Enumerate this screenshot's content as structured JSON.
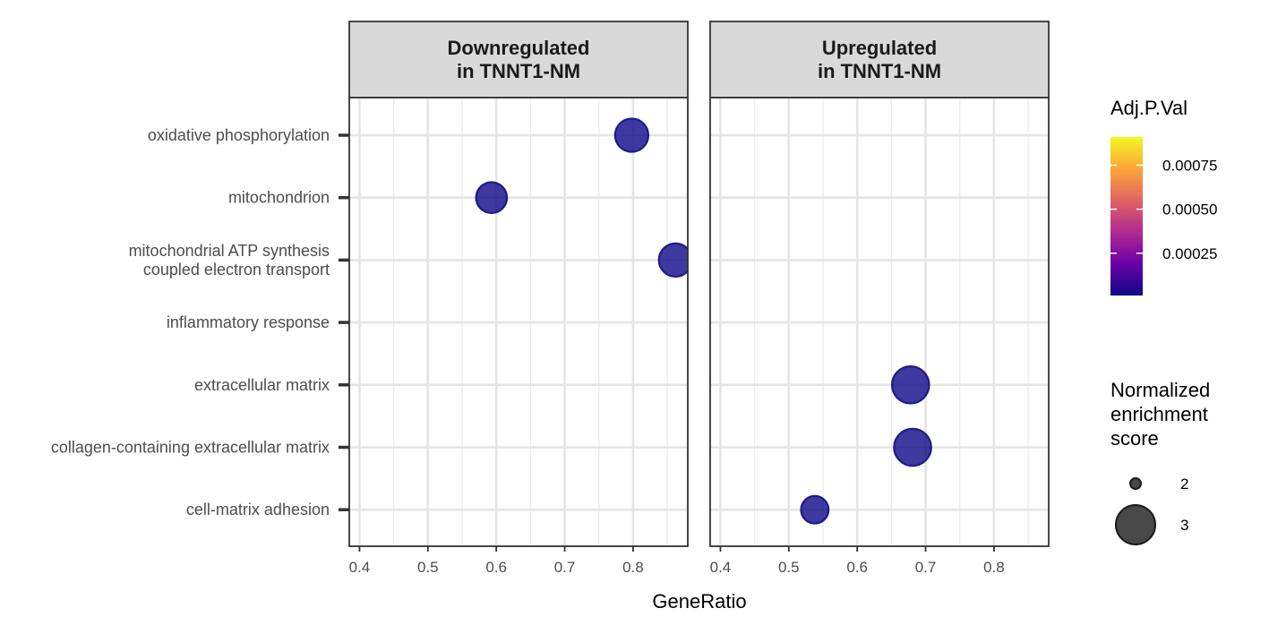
{
  "chart_data": {
    "type": "scatter",
    "xlabel": "GeneRatio",
    "xlim": [
      0.385,
      0.88
    ],
    "x_ticks": [
      "0.4",
      "0.5",
      "0.6",
      "0.7",
      "0.8"
    ],
    "x_tick_values": [
      0.4,
      0.5,
      0.6,
      0.7,
      0.8
    ],
    "categories": [
      "oxidative phosphorylation",
      "mitochondrion",
      "mitochondrial ATP synthesis\ncoupled electron transport",
      "inflammatory response",
      "extracellular matrix",
      "collagen-containing extracellular matrix",
      "cell-matrix adhesion"
    ],
    "panels": [
      {
        "title": "Downregulated\nin TNNT1-NM",
        "points": [
          {
            "category": "oxidative phosphorylation",
            "x": 0.798,
            "size": 2.85,
            "adj_p_val": 1e-05
          },
          {
            "category": "mitochondrion",
            "x": 0.593,
            "size": 2.45,
            "adj_p_val": 1e-05
          },
          {
            "category": "mitochondrial ATP synthesis\ncoupled electron transport",
            "x": 0.862,
            "size": 2.85,
            "adj_p_val": 1e-05
          }
        ]
      },
      {
        "title": "Upregulated\nin TNNT1-NM",
        "points": [
          {
            "category": "extracellular matrix",
            "x": 0.678,
            "size": 3.55,
            "adj_p_val": 1e-05
          },
          {
            "category": "collagen-containing extracellular matrix",
            "x": 0.681,
            "size": 3.55,
            "adj_p_val": 1e-05
          },
          {
            "category": "cell-matrix adhesion",
            "x": 0.538,
            "size": 1.95,
            "adj_p_val": 1e-05
          }
        ]
      }
    ],
    "color_legend": {
      "title": "Adj.P.Val",
      "ticks": [
        "0.00075",
        "0.00050",
        "0.00025"
      ],
      "tick_values": [
        0.00075,
        0.0005,
        0.00025
      ],
      "range": [
        1e-05,
        0.00091
      ],
      "colors": [
        "#0d0887",
        "#6a00a8",
        "#b12a90",
        "#e16462",
        "#fca636",
        "#f0f921"
      ]
    },
    "size_legend": {
      "title": "Normalized\nenrichment\nscore",
      "entries": [
        "2",
        "3"
      ],
      "entry_values": [
        2,
        3
      ]
    },
    "point_fill": "#2d1f9e",
    "point_stroke": "#1f1a8a",
    "grid": true
  }
}
